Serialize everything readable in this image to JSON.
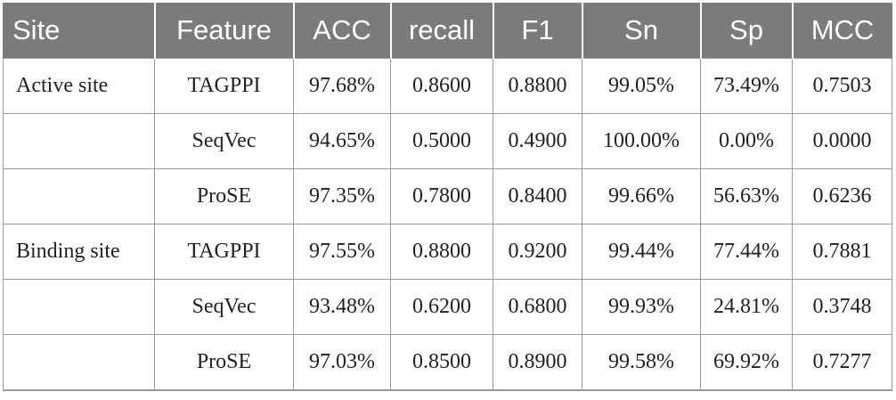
{
  "table": {
    "header": [
      "Site",
      "Feature",
      "ACC",
      "recall",
      "F1",
      "Sn",
      "Sp",
      "MCC"
    ],
    "groups": [
      {
        "site": "Active site",
        "rows": [
          [
            "TAGPPI",
            "97.68%",
            "0.8600",
            "0.8800",
            "99.05%",
            "73.49%",
            "0.7503"
          ],
          [
            "SeqVec",
            "94.65%",
            "0.5000",
            "0.4900",
            "100.00%",
            "0.00%",
            "0.0000"
          ],
          [
            "ProSE",
            "97.35%",
            "0.7800",
            "0.8400",
            "99.66%",
            "56.63%",
            "0.6236"
          ]
        ]
      },
      {
        "site": "Binding site",
        "rows": [
          [
            "TAGPPI",
            "97.55%",
            "0.8800",
            "0.9200",
            "99.44%",
            "77.44%",
            "0.7881"
          ],
          [
            "SeqVec",
            "93.48%",
            "0.6200",
            "0.6800",
            "99.93%",
            "24.81%",
            "0.3748"
          ],
          [
            "ProSE",
            "97.03%",
            "0.8500",
            "0.8900",
            "99.58%",
            "69.92%",
            "0.7277"
          ]
        ]
      }
    ]
  }
}
